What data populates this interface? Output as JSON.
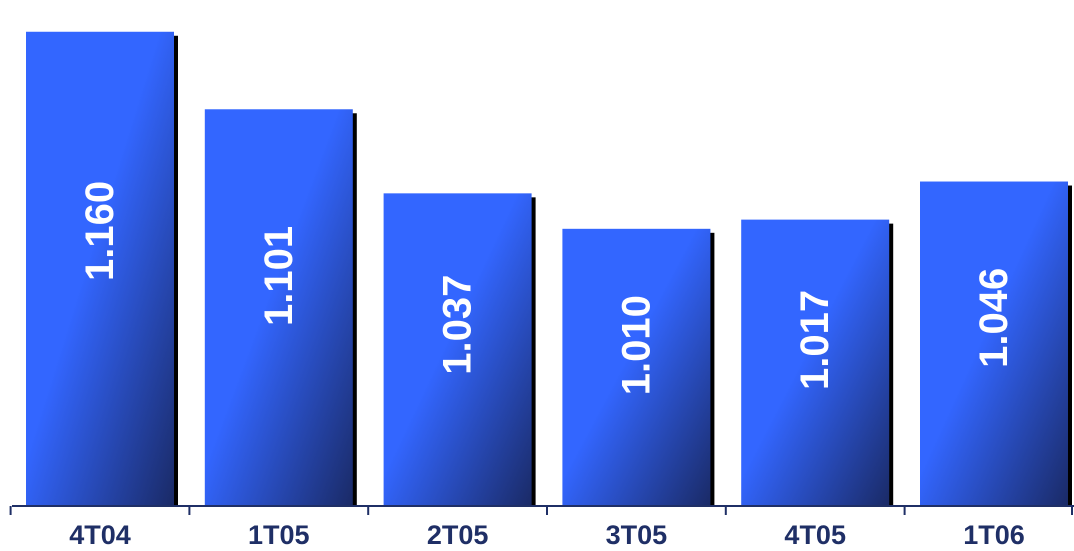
{
  "chart_data": {
    "type": "bar",
    "categories": [
      "4T04",
      "1T05",
      "2T05",
      "3T05",
      "4T05",
      "1T06"
    ],
    "values": [
      1160,
      1101,
      1037,
      1010,
      1017,
      1046
    ],
    "value_labels": [
      "1.160",
      "1.101",
      "1.037",
      "1.010",
      "1.017",
      "1.046"
    ],
    "title": "",
    "xlabel": "",
    "ylabel": "",
    "ylim": [
      799,
      1172
    ],
    "grid": false,
    "legend": "none",
    "value_label_orientation": "vertical",
    "colors": {
      "bar_light": "#3366ff",
      "bar_dark": "#1a2a66",
      "shadow": "#000000",
      "axis": "#1f2f66",
      "category_text": "#1f2f66",
      "value_text": "#ffffff"
    }
  }
}
